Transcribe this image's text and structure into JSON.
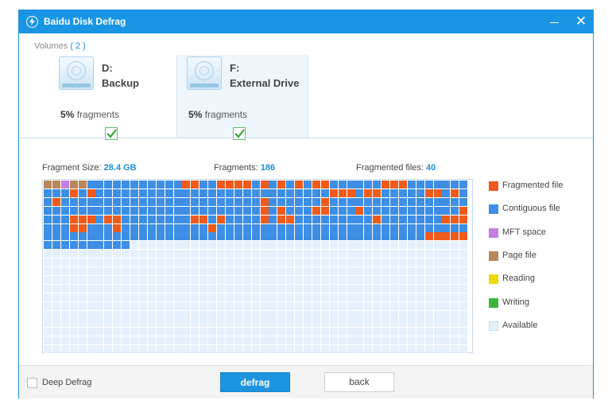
{
  "window": {
    "title": "Baidu Disk Defrag"
  },
  "volumes": {
    "label": "Volumes",
    "count": "2",
    "items": [
      {
        "letter": "D:",
        "name": "Backup",
        "fragment_percent": "5%",
        "fragment_suffix": "fragments",
        "checked": true,
        "selected": false
      },
      {
        "letter": "F:",
        "name": "External Drive",
        "fragment_percent": "5%",
        "fragment_suffix": "fragments",
        "checked": true,
        "selected": true
      }
    ]
  },
  "stats": {
    "fragment_size_label": "Fragment Size:",
    "fragment_size_value": "28.4 GB",
    "fragments_label": "Fragments:",
    "fragments_value": "186",
    "fragmented_files_label": "Fragmented files:",
    "fragmented_files_value": "40"
  },
  "legend": [
    {
      "key": "F",
      "label": "Fragmented file",
      "color": "#f05a1a"
    },
    {
      "key": "C",
      "label": "Contiguous file",
      "color": "#3d8ee4"
    },
    {
      "key": "M",
      "label": "MFT space",
      "color": "#c47ee4"
    },
    {
      "key": "P",
      "label": "Page file",
      "color": "#b9875a"
    },
    {
      "key": "R",
      "label": "Reading",
      "color": "#ebd90f"
    },
    {
      "key": "W",
      "label": "Writing",
      "color": "#3cb43c"
    },
    {
      "key": "A",
      "label": "Available",
      "color": "#e4f0fb"
    }
  ],
  "disk_map": {
    "columns": 49,
    "rows_total": 20,
    "rows": [
      "PPMPPCCCCCCCCCCCFFCCFFFFCFCFCFCFFCCCCCCFFFCCCCCCCCC",
      "CCCFCFCCCCCCCCCCCCCCCCCCCCCCCCCCCFFFCFFCCCCCFFCFCFC",
      "CFCCCCCCCCCCCCCCCCCCCCCCCFCCCCCCFCCCCCCCCCCCCCCCCCC",
      "CCCCCCCCCCCCCCCCCCCCCCCCCFCFCCCFFCCCFCCCCCCCCCCCFCC",
      "CCCFFFCFFCCCCCCCCFFCFCCCCFCFFCCCCCCCCCFCCCCCCCFFFCF",
      "CCCFFCCCFCCCCCCCCCCFCCCCCCCCCCCCCCCCCCCCCCCCCCCCCFC",
      "CCCCCCCCCCCCCCCCCCCCCCCCCCCCCCCCCCCCCCCCCCCCFFFFFCC",
      "CCCCCCCCCC"
    ]
  },
  "footer": {
    "deep_defrag_label": "Deep Defrag",
    "deep_defrag_checked": false,
    "defrag_button": "defrag",
    "back_button": "back"
  }
}
